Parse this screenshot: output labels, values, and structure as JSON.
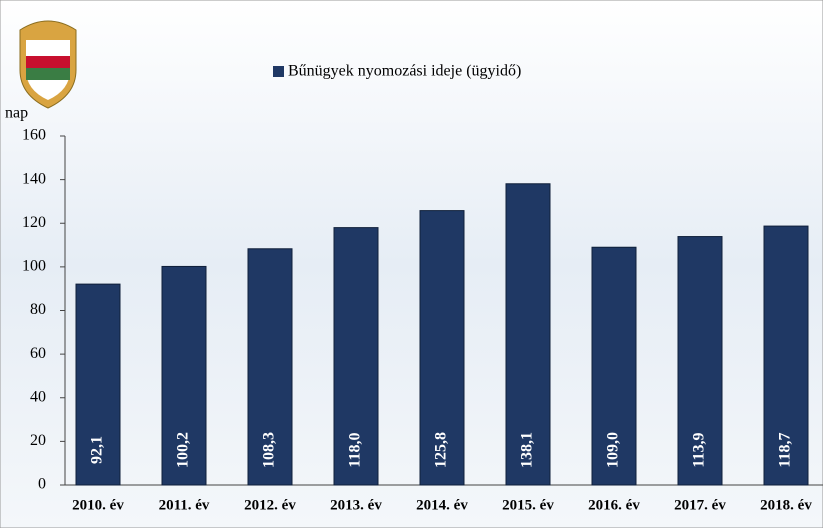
{
  "chart_data": {
    "type": "bar",
    "y_label": "nap",
    "categories": [
      "2010. év",
      "2011. év",
      "2012. év",
      "2013. év",
      "2014. év",
      "2015. év",
      "2016. év",
      "2017. év",
      "2018. év"
    ],
    "series": [
      {
        "name": "Bűnügyek nyomozási ideje (ügyidő)",
        "color": "#1f3864",
        "values": [
          92.1,
          100.2,
          108.3,
          118.0,
          125.8,
          138.1,
          109.0,
          113.9,
          118.7
        ],
        "value_labels": [
          "92,1",
          "100,2",
          "108,3",
          "118,0",
          "125,8",
          "138,1",
          "109,0",
          "113,9",
          "118,7"
        ]
      }
    ],
    "ylim": [
      0,
      160
    ],
    "yticks": [
      0,
      20,
      40,
      60,
      80,
      100,
      120,
      140,
      160
    ],
    "legend": "top"
  }
}
